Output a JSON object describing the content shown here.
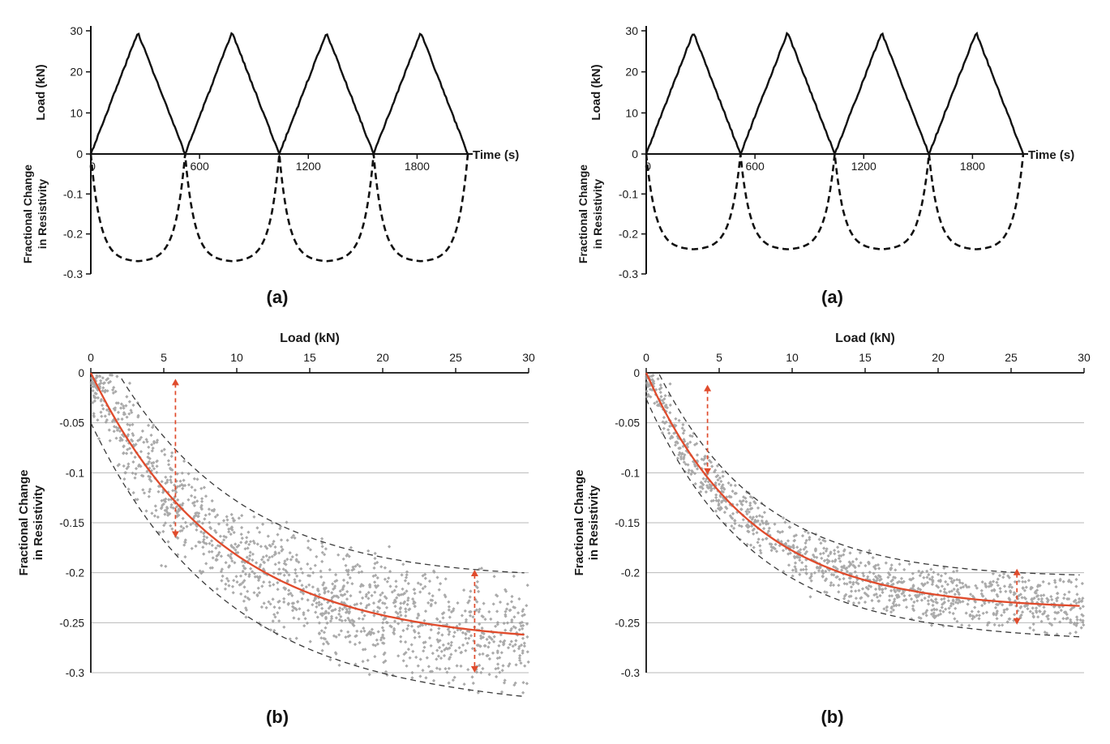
{
  "page": {
    "background": "#ffffff"
  },
  "chart_data": [
    {
      "id": "a-left",
      "type": "line",
      "caption": "(a)",
      "x_axis": {
        "label": "Time (s)",
        "range": [
          0,
          2080
        ],
        "ticks": [
          0,
          600,
          1200,
          1800
        ],
        "tick_labels": [
          "0",
          "600",
          "1200",
          "1800"
        ]
      },
      "y_axis_load": {
        "label": "Load (kN)",
        "range": [
          0,
          30
        ],
        "ticks": [
          0,
          10,
          20,
          30
        ],
        "tick_labels": [
          "0",
          "10",
          "20",
          "30"
        ]
      },
      "y_axis_resistivity": {
        "label_line1": "Fractional Change",
        "label_line2": "in Resistivity",
        "range": [
          0,
          -0.3
        ],
        "ticks": [
          -0.1,
          -0.2,
          -0.3
        ],
        "tick_labels": [
          "-0.1",
          "-0.2",
          "-0.3"
        ]
      },
      "series": [
        {
          "name": "load",
          "style": "solid",
          "color": "#111111",
          "waveform": "triangle",
          "period_s": 520,
          "peak_kN": 29.6,
          "cycles": 4,
          "noise_kN": 0.25,
          "seed": 3
        },
        {
          "name": "fractional-change-in-resistivity",
          "style": "dashed",
          "color": "#111111",
          "min_value": -0.27,
          "tau_kN": 6
        }
      ]
    },
    {
      "id": "a-right",
      "type": "line",
      "caption": "(a)",
      "x_axis": {
        "label": "Time (s)",
        "range": [
          0,
          2080
        ],
        "ticks": [
          0,
          600,
          1200,
          1800
        ],
        "tick_labels": [
          "0",
          "600",
          "1200",
          "1800"
        ]
      },
      "y_axis_load": {
        "label": "Load (kN)",
        "range": [
          0,
          30
        ],
        "ticks": [
          0,
          10,
          20,
          30
        ],
        "tick_labels": [
          "0",
          "10",
          "20",
          "30"
        ]
      },
      "y_axis_resistivity": {
        "label_line1": "Fractional Change",
        "label_line2": "in Resistivity",
        "range": [
          0,
          -0.3
        ],
        "ticks": [
          -0.1,
          -0.2,
          -0.3
        ],
        "tick_labels": [
          "-0.1",
          "-0.2",
          "-0.3"
        ]
      },
      "series": [
        {
          "name": "load",
          "style": "solid",
          "color": "#111111",
          "waveform": "triangle",
          "period_s": 520,
          "peak_kN": 29.6,
          "cycles": 4,
          "noise_kN": 0.25,
          "seed": 5
        },
        {
          "name": "fractional-change-in-resistivity",
          "style": "dashed",
          "color": "#111111",
          "min_value": -0.24,
          "tau_kN": 6
        }
      ]
    },
    {
      "id": "b-left",
      "type": "scatter",
      "caption": "(b)",
      "x_axis": {
        "label": "Load (kN)",
        "position": "top",
        "range": [
          0,
          30
        ],
        "ticks": [
          0,
          5,
          10,
          15,
          20,
          25,
          30
        ],
        "tick_labels": [
          "0",
          "5",
          "10",
          "15",
          "20",
          "25",
          "30"
        ]
      },
      "y_axis": {
        "label_line1": "Fractional Change",
        "label_line2": "in Resistivity",
        "range": [
          0,
          -0.3
        ],
        "ticks": [
          0,
          -0.05,
          -0.1,
          -0.15,
          -0.2,
          -0.25,
          -0.3
        ],
        "tick_labels": [
          "0",
          "-0.05",
          "-0.1",
          "-0.15",
          "-0.2",
          "-0.25",
          "-0.3"
        ]
      },
      "grid": true,
      "fit_curve": {
        "model": "a*(1-exp(-x/b))",
        "a": -0.272,
        "b": 9.0,
        "color": "#e04b2c",
        "value_at_30kN": -0.263
      },
      "envelope": {
        "style": "dashed",
        "color": "#3a3a3a",
        "offset_start": 0.05,
        "offset_end": 0.062
      },
      "scatter": {
        "color": "#9b9b9b",
        "n_points": 1400,
        "seed": 7,
        "outlier_rate": 0.025
      },
      "arrows": {
        "color": "#e04b2c",
        "style": "dashed",
        "items": [
          {
            "x_kN": 5.8,
            "y_from": -0.006,
            "y_to": -0.165
          },
          {
            "x_kN": 26.3,
            "y_from": -0.197,
            "y_to": -0.3
          }
        ]
      }
    },
    {
      "id": "b-right",
      "type": "scatter",
      "caption": "(b)",
      "x_axis": {
        "label": "Load (kN)",
        "position": "top",
        "range": [
          0,
          30
        ],
        "ticks": [
          0,
          5,
          10,
          15,
          20,
          25,
          30
        ],
        "tick_labels": [
          "0",
          "5",
          "10",
          "15",
          "20",
          "25",
          "30"
        ]
      },
      "y_axis": {
        "label_line1": "Fractional Change",
        "label_line2": "in Resistivity",
        "range": [
          0,
          -0.3
        ],
        "ticks": [
          0,
          -0.05,
          -0.1,
          -0.15,
          -0.2,
          -0.25,
          -0.3
        ],
        "tick_labels": [
          "0",
          "-0.05",
          "-0.1",
          "-0.15",
          "-0.2",
          "-0.25",
          "-0.3"
        ]
      },
      "grid": true,
      "fit_curve": {
        "model": "a*(1-exp(-x/b))",
        "a": -0.237,
        "b": 7.2,
        "color": "#e04b2c",
        "value_at_30kN": -0.234
      },
      "envelope": {
        "style": "dashed",
        "color": "#3a3a3a",
        "offset_start": 0.026,
        "offset_end": 0.031
      },
      "scatter": {
        "color": "#9b9b9b",
        "n_points": 1150,
        "seed": 13,
        "outlier_rate": 0.02
      },
      "arrows": {
        "color": "#e04b2c",
        "style": "dashed",
        "items": [
          {
            "x_kN": 4.2,
            "y_from": -0.012,
            "y_to": -0.102
          },
          {
            "x_kN": 25.4,
            "y_from": -0.196,
            "y_to": -0.252
          }
        ]
      }
    }
  ]
}
